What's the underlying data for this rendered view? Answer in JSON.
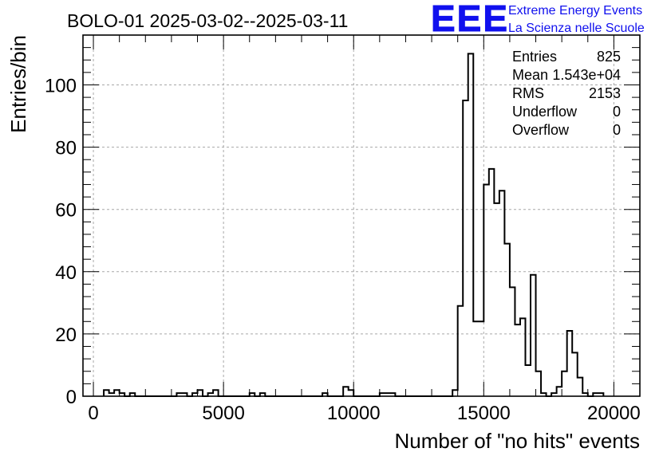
{
  "title": "BOLO-01 2025-03-02--2025-03-11",
  "logo": {
    "mark": "EEE",
    "line1": "Extreme Energy Events",
    "line2": "La Scienza nelle Scuole",
    "color": "#1010ee"
  },
  "stats": [
    {
      "label": "Entries",
      "value": "825"
    },
    {
      "label": "Mean",
      "value": "1.543e+04"
    },
    {
      "label": "RMS",
      "value": "2153"
    },
    {
      "label": "Underflow",
      "value": "0"
    },
    {
      "label": "Overflow",
      "value": "0"
    }
  ],
  "chart_data": {
    "type": "bar",
    "style": "step-histogram",
    "xlabel": "Number of \"no hits\" events",
    "ylabel": "Entries/bin",
    "xlim": [
      -400,
      21000
    ],
    "ylim": [
      0,
      116
    ],
    "bin_width": 200,
    "grid": true,
    "x_ticks": [
      0,
      5000,
      10000,
      15000,
      20000
    ],
    "y_ticks": [
      0,
      20,
      40,
      60,
      80,
      100
    ],
    "bins": [
      {
        "x": 400,
        "y": 2
      },
      {
        "x": 600,
        "y": 1
      },
      {
        "x": 800,
        "y": 2
      },
      {
        "x": 1000,
        "y": 1
      },
      {
        "x": 1400,
        "y": 1
      },
      {
        "x": 3200,
        "y": 1
      },
      {
        "x": 3400,
        "y": 1
      },
      {
        "x": 3800,
        "y": 1
      },
      {
        "x": 4000,
        "y": 2
      },
      {
        "x": 4400,
        "y": 1
      },
      {
        "x": 4600,
        "y": 2
      },
      {
        "x": 6000,
        "y": 1
      },
      {
        "x": 6400,
        "y": 1
      },
      {
        "x": 8800,
        "y": 1
      },
      {
        "x": 9600,
        "y": 3
      },
      {
        "x": 9800,
        "y": 2
      },
      {
        "x": 11000,
        "y": 1
      },
      {
        "x": 11200,
        "y": 1
      },
      {
        "x": 11400,
        "y": 1
      },
      {
        "x": 13800,
        "y": 2
      },
      {
        "x": 14000,
        "y": 29
      },
      {
        "x": 14200,
        "y": 95
      },
      {
        "x": 14400,
        "y": 110
      },
      {
        "x": 14600,
        "y": 24
      },
      {
        "x": 14800,
        "y": 24
      },
      {
        "x": 15000,
        "y": 68
      },
      {
        "x": 15200,
        "y": 73
      },
      {
        "x": 15400,
        "y": 62
      },
      {
        "x": 15600,
        "y": 66
      },
      {
        "x": 15800,
        "y": 49
      },
      {
        "x": 16000,
        "y": 35
      },
      {
        "x": 16200,
        "y": 23
      },
      {
        "x": 16400,
        "y": 25
      },
      {
        "x": 16600,
        "y": 10
      },
      {
        "x": 16800,
        "y": 39
      },
      {
        "x": 17000,
        "y": 8
      },
      {
        "x": 17200,
        "y": 1
      },
      {
        "x": 17400,
        "y": 0
      },
      {
        "x": 17600,
        "y": 1
      },
      {
        "x": 17800,
        "y": 3
      },
      {
        "x": 18000,
        "y": 8
      },
      {
        "x": 18200,
        "y": 21
      },
      {
        "x": 18400,
        "y": 14
      },
      {
        "x": 18600,
        "y": 6
      },
      {
        "x": 18800,
        "y": 1
      },
      {
        "x": 19200,
        "y": 1
      },
      {
        "x": 19400,
        "y": 1
      }
    ]
  }
}
